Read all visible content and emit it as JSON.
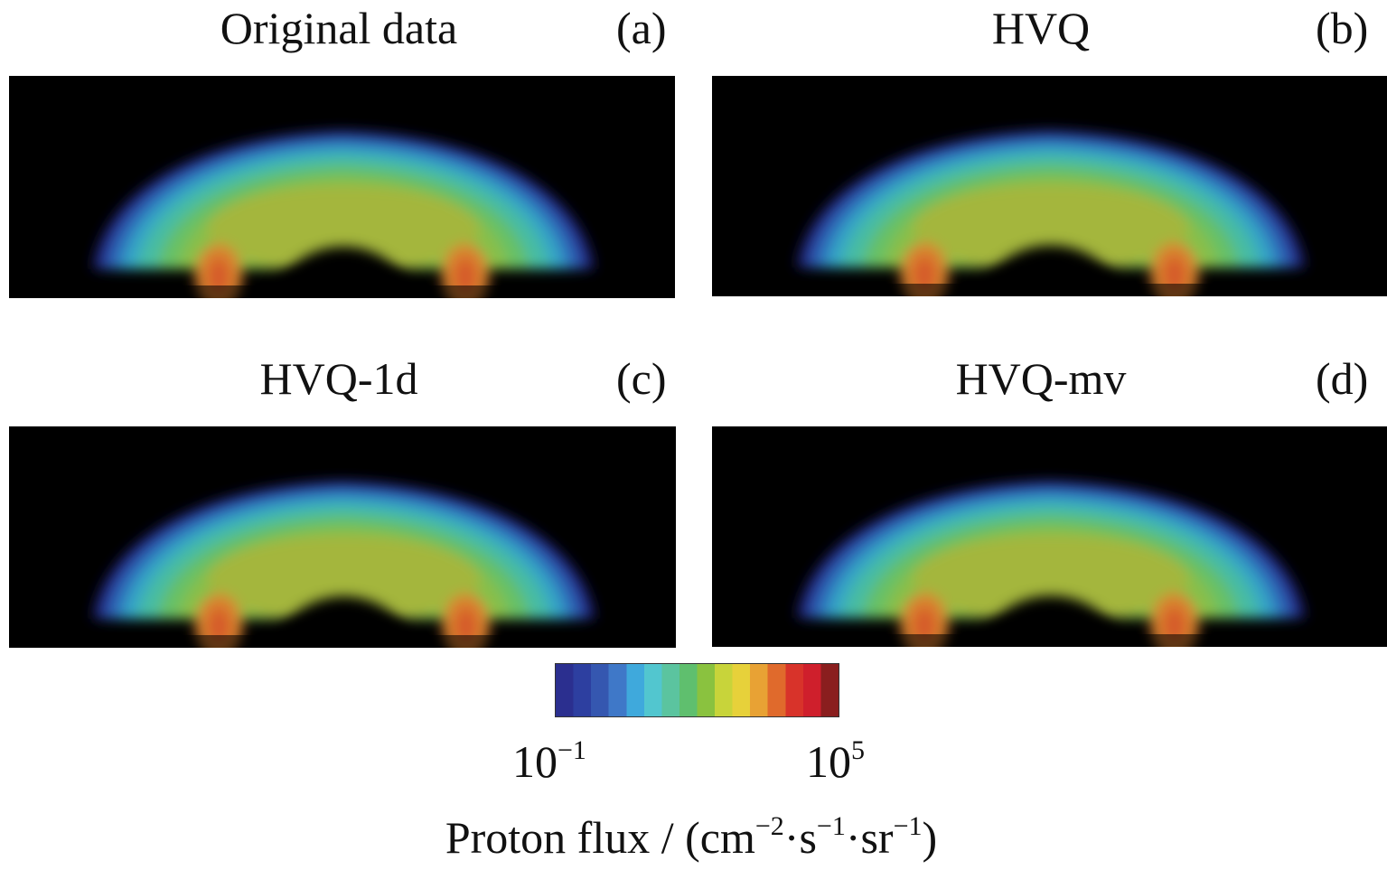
{
  "panels": [
    {
      "title": "Original data",
      "letter": "(a)"
    },
    {
      "title": "HVQ",
      "letter": "(b)"
    },
    {
      "title": "HVQ-1d",
      "letter": "(c)"
    },
    {
      "title": "HVQ-mv",
      "letter": "(d)"
    }
  ],
  "colorbar": {
    "min_base": "10",
    "min_exp": "−1",
    "max_base": "10",
    "max_exp": "5",
    "colors": [
      "#2b2f8f",
      "#2d3fa0",
      "#3557b0",
      "#3f78c8",
      "#3fa9dc",
      "#52c6cf",
      "#5bc49f",
      "#5fbf6e",
      "#8ac23f",
      "#c8d43a",
      "#e7d13a",
      "#e8a234",
      "#e06a2c",
      "#d8332a",
      "#cf1f2c",
      "#8a1e1e"
    ]
  },
  "units": {
    "label": "Proton flux / (cm",
    "exp1": "−2",
    "mid1": "·s",
    "exp2": "−1",
    "mid2": "·sr",
    "exp3": "−1",
    "close": ")"
  }
}
